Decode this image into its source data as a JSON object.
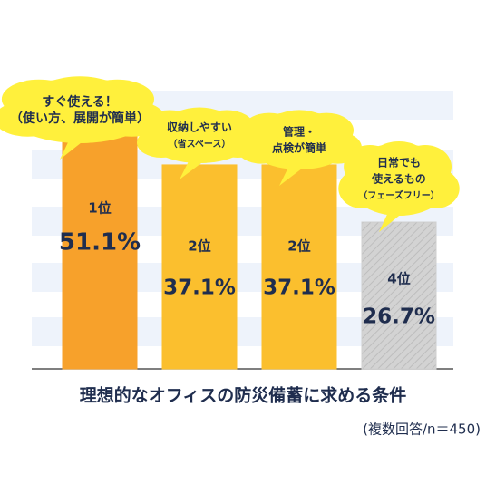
{
  "chart_data": {
    "type": "bar",
    "title": "理想的なオフィスの防災備蓄に求める条件",
    "note": "(複数回答/n＝450)",
    "categories": [
      [
        "すぐ使える！",
        "（使い方、展開が簡単）"
      ],
      [
        "収納しやすい",
        "（省スペース）"
      ],
      [
        "管理・",
        "点検が簡単"
      ],
      [
        "日常でも",
        "使えるもの",
        "（フェーズフリー）"
      ]
    ],
    "ranks": [
      "1位",
      "2位",
      "2位",
      "4位"
    ],
    "values": [
      51.1,
      37.1,
      37.1,
      26.7
    ],
    "value_labels": [
      "51.1%",
      "37.1%",
      "37.1%",
      "26.7%"
    ],
    "colors": [
      "#f7a12b",
      "#fbbf2e",
      "#fbbf2e",
      "#cfcfcf"
    ],
    "cloud_color": "#fff03c",
    "ylim": [
      0,
      60
    ]
  }
}
